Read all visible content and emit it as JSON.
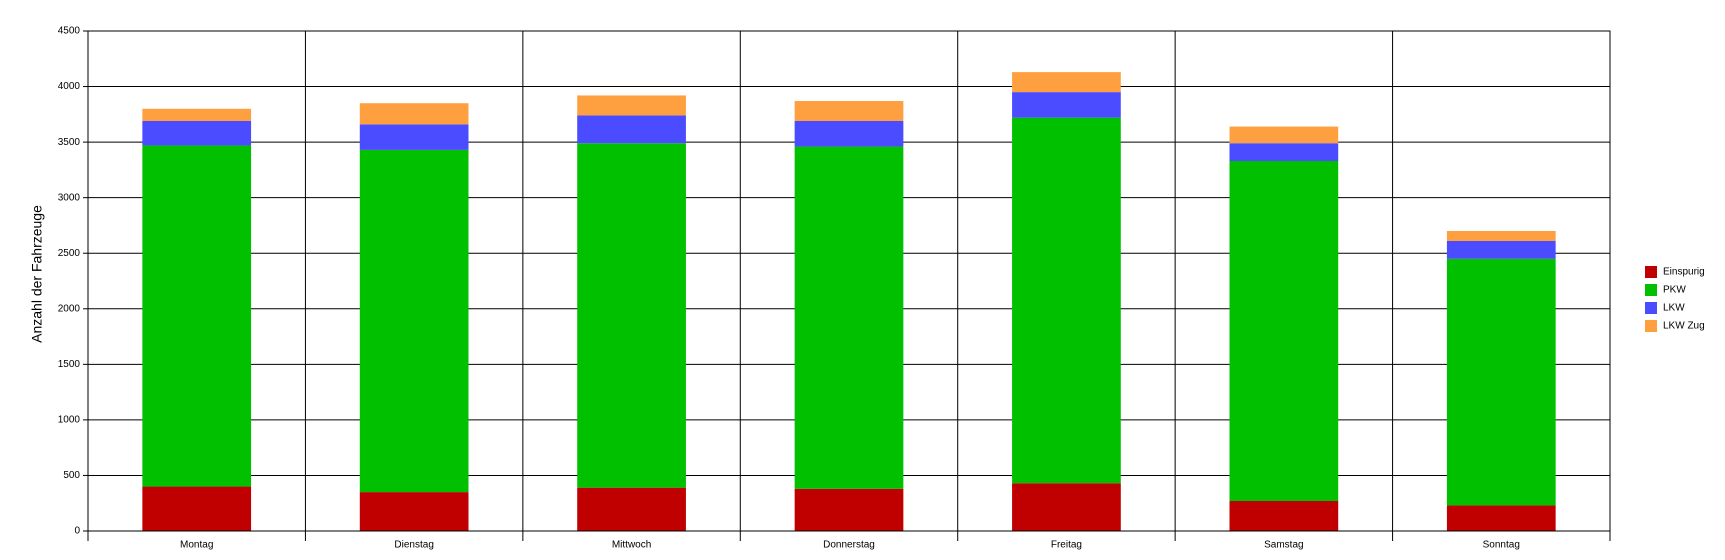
{
  "chart_data": {
    "type": "stacked_bar",
    "y_label": "Anzahl der Fahrzeuge",
    "categories": [
      "Montag",
      "Dienstag",
      "Mittwoch",
      "Donnerstag",
      "Freitag",
      "Samstag",
      "Sonntag"
    ],
    "series": [
      {
        "name": "Einspurig",
        "color": "#c00000",
        "values": [
          400,
          350,
          390,
          380,
          430,
          270,
          230
        ]
      },
      {
        "name": "PKW",
        "color": "#00c000",
        "values": [
          3070,
          3080,
          3100,
          3080,
          3290,
          3060,
          2220
        ]
      },
      {
        "name": "LKW",
        "color": "#4b4bff",
        "values": [
          220,
          230,
          250,
          230,
          230,
          160,
          160
        ]
      },
      {
        "name": "LKW Zug",
        "color": "#ffa040",
        "values": [
          110,
          190,
          180,
          180,
          180,
          150,
          90
        ]
      }
    ],
    "ylim": [
      0,
      4500
    ],
    "yticks": [
      0,
      500,
      1000,
      1500,
      2000,
      2500,
      3000,
      3500,
      4000,
      4500
    ],
    "grid": true,
    "legend": "right"
  }
}
